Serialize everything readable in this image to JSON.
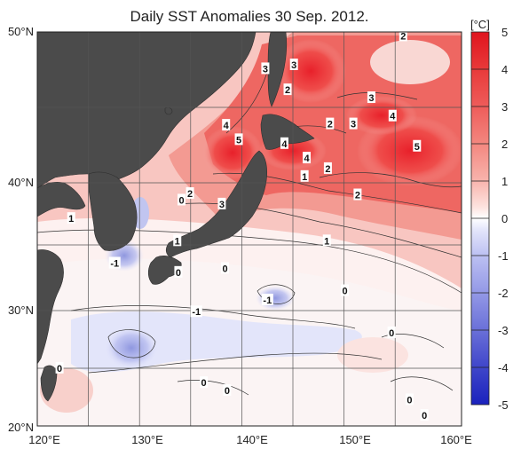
{
  "chart_data": {
    "type": "heatmap",
    "title": "Daily SST Anomalies 30 Sep. 2012.",
    "x_ticks": [
      "120°E",
      "130°E",
      "140°E",
      "150°E",
      "160°E"
    ],
    "y_ticks": [
      "20°N",
      "30°N",
      "40°N",
      "50°N"
    ],
    "x_range": [
      120,
      160
    ],
    "y_range": [
      20,
      50
    ],
    "grid": true,
    "colorbar": {
      "unit": "[°C]",
      "ticks": [
        "5",
        "4",
        "3",
        "2",
        "1",
        "0",
        "-1",
        "-2",
        "-3",
        "-4",
        "-5"
      ],
      "range": [
        -5,
        5
      ],
      "placement": "right"
    },
    "contour_labels": [
      {
        "text": "2",
        "lon": 154.5,
        "lat": 49.7
      },
      {
        "text": "3",
        "lon": 141.5,
        "lat": 47.2
      },
      {
        "text": "3",
        "lon": 144.2,
        "lat": 47.5
      },
      {
        "text": "2",
        "lon": 143.6,
        "lat": 45.6
      },
      {
        "text": "3",
        "lon": 151.5,
        "lat": 45.0
      },
      {
        "text": "4",
        "lon": 153.5,
        "lat": 43.6
      },
      {
        "text": "4",
        "lon": 137.8,
        "lat": 42.9
      },
      {
        "text": "5",
        "lon": 139.0,
        "lat": 41.8
      },
      {
        "text": "2",
        "lon": 147.6,
        "lat": 43.0
      },
      {
        "text": "3",
        "lon": 149.8,
        "lat": 43.0
      },
      {
        "text": "4",
        "lon": 143.3,
        "lat": 41.5
      },
      {
        "text": "5",
        "lon": 155.8,
        "lat": 41.3
      },
      {
        "text": "4",
        "lon": 145.4,
        "lat": 40.4
      },
      {
        "text": "2",
        "lon": 147.4,
        "lat": 39.6
      },
      {
        "text": "1",
        "lon": 145.2,
        "lat": 39.0
      },
      {
        "text": "2",
        "lon": 150.2,
        "lat": 37.6
      },
      {
        "text": "0",
        "lon": 133.6,
        "lat": 37.2
      },
      {
        "text": "2",
        "lon": 134.4,
        "lat": 37.7
      },
      {
        "text": "3",
        "lon": 137.4,
        "lat": 36.9
      },
      {
        "text": "1",
        "lon": 123.2,
        "lat": 35.8
      },
      {
        "text": "1",
        "lon": 133.2,
        "lat": 34.1
      },
      {
        "text": "1",
        "lon": 147.3,
        "lat": 34.1
      },
      {
        "text": "-1",
        "lon": 127.3,
        "lat": 32.4
      },
      {
        "text": "0",
        "lon": 133.3,
        "lat": 31.7
      },
      {
        "text": "0",
        "lon": 137.7,
        "lat": 32.0
      },
      {
        "text": "0",
        "lon": 149.0,
        "lat": 30.3
      },
      {
        "text": "-1",
        "lon": 135.0,
        "lat": 28.7
      },
      {
        "text": "-1",
        "lon": 141.7,
        "lat": 29.6
      },
      {
        "text": "0",
        "lon": 122.1,
        "lat": 24.4
      },
      {
        "text": "0",
        "lon": 135.7,
        "lat": 23.3
      },
      {
        "text": "0",
        "lon": 137.9,
        "lat": 22.7
      },
      {
        "text": "0",
        "lon": 153.4,
        "lat": 27.1
      },
      {
        "text": "0",
        "lon": 155.1,
        "lat": 22.0
      },
      {
        "text": "0",
        "lon": 156.5,
        "lat": 20.8
      }
    ]
  }
}
